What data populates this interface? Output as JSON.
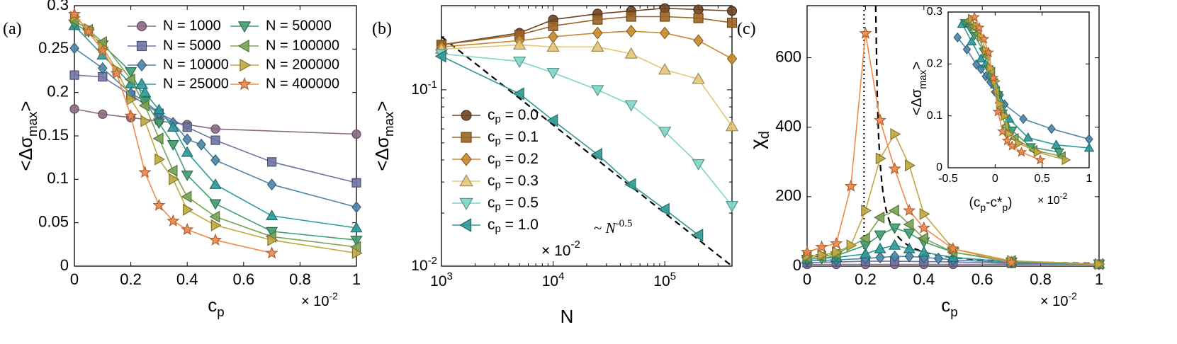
{
  "colors": {
    "N1000": "#8a6a86",
    "N5000": "#6f73a3",
    "N10000": "#4d86a8",
    "N25000": "#2c9a9a",
    "N50000": "#3f9f6f",
    "N100000": "#7aa353",
    "N200000": "#c0a83f",
    "N400000": "#f08a4a",
    "cp00": "#6b4221",
    "cp01": "#9b6423",
    "cp02": "#c88a2e",
    "cp03": "#e3c77a",
    "cp05": "#7fd6c8",
    "cp10": "#2f9a94",
    "fit": "#000000"
  },
  "chart_data": [
    {
      "panel": "(a)",
      "type": "line",
      "xlabel": "c_p",
      "x_scale_label": "× 10",
      "x_scale_exp": "-2",
      "ylabel": "<Δσ_max>",
      "xlim": [
        0,
        1
      ],
      "ylim": [
        0,
        0.3
      ],
      "xticks": [
        0,
        0.2,
        0.4,
        0.6,
        0.8,
        1
      ],
      "xticklabels": [
        "0",
        "0.2",
        "0.4",
        "0.6",
        "0.8",
        "1"
      ],
      "yticks": [
        0,
        0.05,
        0.1,
        0.15,
        0.2,
        0.25,
        0.3
      ],
      "yticklabels": [
        "0",
        "0.05",
        "0.1",
        "0.15",
        "0.2",
        "0.25",
        "0.3"
      ],
      "legend": "top-right, two columns",
      "series": [
        {
          "name": "N = 1000",
          "color_key": "N1000",
          "marker": "circle",
          "x": [
            0,
            0.1,
            0.2,
            0.3,
            0.4,
            0.5,
            1.0
          ],
          "y": [
            0.181,
            0.175,
            0.171,
            0.167,
            0.163,
            0.158,
            0.152
          ]
        },
        {
          "name": "N = 5000",
          "color_key": "N5000",
          "marker": "square",
          "x": [
            0,
            0.1,
            0.2,
            0.3,
            0.4,
            0.5,
            0.7,
            1.0
          ],
          "y": [
            0.22,
            0.218,
            0.197,
            0.176,
            0.16,
            0.145,
            0.12,
            0.096
          ]
        },
        {
          "name": "N = 10000",
          "color_key": "N10000",
          "marker": "diamond",
          "x": [
            0,
            0.1,
            0.2,
            0.25,
            0.3,
            0.35,
            0.4,
            0.45,
            0.5,
            0.7,
            1.0
          ],
          "y": [
            0.251,
            0.228,
            0.199,
            0.19,
            0.176,
            0.165,
            0.146,
            0.14,
            0.122,
            0.094,
            0.068
          ]
        },
        {
          "name": "N = 25000",
          "color_key": "N25000",
          "marker": "triangle-up",
          "x": [
            0,
            0.1,
            0.2,
            0.25,
            0.3,
            0.35,
            0.4,
            0.5,
            0.7,
            1.0
          ],
          "y": [
            0.277,
            0.243,
            0.21,
            0.2,
            0.18,
            0.16,
            0.131,
            0.094,
            0.058,
            0.044
          ]
        },
        {
          "name": "N = 50000",
          "color_key": "N50000",
          "marker": "triangle-down",
          "x": [
            0,
            0.05,
            0.1,
            0.2,
            0.25,
            0.3,
            0.35,
            0.4,
            0.5,
            0.7,
            1.0
          ],
          "y": [
            0.279,
            0.27,
            0.255,
            0.224,
            0.19,
            0.165,
            0.14,
            0.105,
            0.072,
            0.04,
            0.03
          ]
        },
        {
          "name": "N = 100000",
          "color_key": "N100000",
          "marker": "triangle-left",
          "x": [
            0,
            0.05,
            0.1,
            0.2,
            0.25,
            0.3,
            0.35,
            0.4,
            0.5,
            0.7,
            1.0
          ],
          "y": [
            0.283,
            0.272,
            0.258,
            0.215,
            0.185,
            0.147,
            0.11,
            0.08,
            0.057,
            0.034,
            0.022
          ]
        },
        {
          "name": "N = 200000",
          "color_key": "N200000",
          "marker": "triangle-right",
          "x": [
            0,
            0.05,
            0.1,
            0.15,
            0.2,
            0.25,
            0.3,
            0.35,
            0.4,
            0.5,
            0.7,
            1.0
          ],
          "y": [
            0.287,
            0.273,
            0.252,
            0.226,
            0.192,
            0.167,
            0.123,
            0.1,
            0.065,
            0.047,
            0.03,
            0.015
          ]
        },
        {
          "name": "N = 400000",
          "color_key": "N400000",
          "marker": "star",
          "x": [
            0,
            0.05,
            0.1,
            0.15,
            0.2,
            0.25,
            0.3,
            0.35,
            0.4,
            0.5,
            0.7
          ],
          "y": [
            0.29,
            0.27,
            0.248,
            0.222,
            0.173,
            0.108,
            0.07,
            0.052,
            0.042,
            0.03,
            0.015
          ]
        }
      ]
    },
    {
      "panel": "(b)",
      "type": "line",
      "scale": "log-log",
      "xlabel": "N",
      "ylabel": "<Δσ_max>",
      "xlim": [
        1000,
        400000
      ],
      "ylim": [
        0.01,
        0.3
      ],
      "xticks": [
        1000,
        10000,
        100000
      ],
      "xticklabels": [
        "10^3",
        "10^4",
        "10^5"
      ],
      "yticks": [
        0.01,
        0.1
      ],
      "yticklabels": [
        "10^-2",
        "10^-1"
      ],
      "legend": "middle-left",
      "legend_scale_label": "× 10",
      "legend_scale_exp": "-2",
      "annotation": "~ N^-0.5",
      "fit": {
        "label": "~ N^-0.5",
        "exponent": -0.5,
        "x": [
          1000,
          400000
        ],
        "y": [
          0.2,
          0.01
        ]
      },
      "series": [
        {
          "name": "c_p = 0.0",
          "color_key": "cp00",
          "marker": "circle",
          "x": [
            1000,
            5000,
            10000,
            25000,
            50000,
            100000,
            200000,
            400000
          ],
          "y": [
            0.18,
            0.21,
            0.25,
            0.27,
            0.28,
            0.29,
            0.285,
            0.28
          ]
        },
        {
          "name": "c_p = 0.1",
          "color_key": "cp01",
          "marker": "square",
          "x": [
            1000,
            5000,
            10000,
            25000,
            50000,
            100000,
            200000,
            400000
          ],
          "y": [
            0.18,
            0.205,
            0.23,
            0.25,
            0.26,
            0.26,
            0.255,
            0.24
          ]
        },
        {
          "name": "c_p = 0.2",
          "color_key": "cp02",
          "marker": "diamond",
          "x": [
            1000,
            5000,
            10000,
            25000,
            50000,
            100000,
            200000,
            400000
          ],
          "y": [
            0.175,
            0.19,
            0.2,
            0.21,
            0.215,
            0.21,
            0.19,
            0.15
          ]
        },
        {
          "name": "c_p = 0.3",
          "color_key": "cp03",
          "marker": "triangle-up",
          "x": [
            1000,
            5000,
            10000,
            25000,
            50000,
            100000,
            200000,
            400000
          ],
          "y": [
            0.17,
            0.18,
            0.175,
            0.175,
            0.16,
            0.13,
            0.115,
            0.062
          ]
        },
        {
          "name": "c_p = 0.5",
          "color_key": "cp05",
          "marker": "triangle-down",
          "x": [
            1000,
            5000,
            10000,
            25000,
            50000,
            100000,
            200000,
            400000
          ],
          "y": [
            0.16,
            0.145,
            0.125,
            0.1,
            0.082,
            0.058,
            0.038,
            0.022
          ]
        },
        {
          "name": "c_p = 1.0",
          "color_key": "cp10",
          "marker": "triangle-left",
          "x": [
            1000,
            5000,
            10000,
            25000,
            50000,
            100000,
            200000
          ],
          "y": [
            0.155,
            0.095,
            0.067,
            0.043,
            0.029,
            0.021,
            0.015
          ]
        }
      ]
    },
    {
      "panel": "(c)",
      "type": "line",
      "xlabel": "c_p",
      "x_scale_label": "× 10",
      "x_scale_exp": "-2",
      "ylabel": "χ_d",
      "xlim": [
        0,
        1
      ],
      "ylim": [
        0,
        750
      ],
      "xticks": [
        0,
        0.2,
        0.4,
        0.6,
        0.8,
        1
      ],
      "xticklabels": [
        "0",
        "0.2",
        "0.4",
        "0.6",
        "0.8",
        "1"
      ],
      "yticks": [
        0,
        200,
        400,
        600
      ],
      "yticklabels": [
        "0",
        "200",
        "400",
        "600"
      ],
      "vertical_lines": [
        {
          "x": 0.195,
          "style": "dotted"
        },
        {
          "x": 0.225,
          "style": "dashed",
          "note": "divergence fit"
        }
      ],
      "series": [
        {
          "name": "N = 1000",
          "color_key": "N1000",
          "marker": "circle",
          "x": [
            0,
            0.1,
            0.2,
            0.3,
            0.4,
            0.5,
            1.0
          ],
          "y": [
            5,
            5,
            5,
            5,
            5,
            5,
            5
          ]
        },
        {
          "name": "N = 5000",
          "color_key": "N5000",
          "marker": "square",
          "x": [
            0,
            0.1,
            0.2,
            0.3,
            0.4,
            0.5,
            0.7,
            1.0
          ],
          "y": [
            10,
            12,
            14,
            14,
            13,
            12,
            8,
            5
          ]
        },
        {
          "name": "N = 10000",
          "color_key": "N10000",
          "marker": "diamond",
          "x": [
            0,
            0.1,
            0.2,
            0.25,
            0.3,
            0.35,
            0.4,
            0.45,
            0.5,
            0.7,
            1.0
          ],
          "y": [
            15,
            18,
            22,
            25,
            28,
            28,
            25,
            22,
            18,
            10,
            6
          ]
        },
        {
          "name": "N = 25000",
          "color_key": "N25000",
          "marker": "triangle-up",
          "x": [
            0,
            0.1,
            0.2,
            0.25,
            0.3,
            0.35,
            0.4,
            0.5,
            0.7,
            1.0
          ],
          "y": [
            20,
            25,
            35,
            50,
            60,
            50,
            40,
            25,
            12,
            6
          ]
        },
        {
          "name": "N = 50000",
          "color_key": "N50000",
          "marker": "triangle-down",
          "x": [
            0,
            0.05,
            0.1,
            0.2,
            0.25,
            0.3,
            0.35,
            0.4,
            0.5,
            0.7,
            1.0
          ],
          "y": [
            20,
            22,
            30,
            60,
            90,
            110,
            95,
            70,
            40,
            12,
            6
          ]
        },
        {
          "name": "N = 100000",
          "color_key": "N100000",
          "marker": "triangle-left",
          "x": [
            0,
            0.05,
            0.1,
            0.2,
            0.25,
            0.3,
            0.35,
            0.4,
            0.5,
            0.7,
            1.0
          ],
          "y": [
            25,
            28,
            35,
            80,
            140,
            160,
            120,
            80,
            40,
            15,
            6
          ]
        },
        {
          "name": "N = 200000",
          "color_key": "N200000",
          "marker": "triangle-right",
          "x": [
            0,
            0.05,
            0.1,
            0.15,
            0.2,
            0.25,
            0.3,
            0.35,
            0.4,
            0.5,
            0.7,
            1.0
          ],
          "y": [
            30,
            32,
            40,
            60,
            160,
            310,
            380,
            290,
            150,
            50,
            15,
            6
          ]
        },
        {
          "name": "N = 400000",
          "color_key": "N400000",
          "marker": "star",
          "x": [
            0,
            0.05,
            0.1,
            0.15,
            0.2,
            0.25,
            0.3,
            0.35,
            0.4,
            0.5,
            0.7
          ],
          "y": [
            40,
            55,
            65,
            230,
            670,
            420,
            280,
            160,
            110,
            50,
            10
          ]
        }
      ]
    },
    {
      "panel": "(c) inset",
      "type": "line",
      "xlabel": "(c_p - c*_p)",
      "x_scale_label": "× 10",
      "x_scale_exp": "-2",
      "ylabel": "<Δσ_max>",
      "xlim": [
        -0.5,
        1
      ],
      "ylim": [
        0,
        0.3
      ],
      "xticks": [
        -0.5,
        0,
        0.5,
        1
      ],
      "xticklabels": [
        "-0.5",
        "0",
        "0.5",
        "1"
      ],
      "yticks": [
        0,
        0.1,
        0.2,
        0.3
      ],
      "yticklabels": [
        "0",
        "0.1",
        "0.2",
        "0.3"
      ],
      "series": [
        {
          "name": "N = 10000",
          "color_key": "N10000",
          "marker": "diamond",
          "x": [
            -0.4,
            -0.3,
            -0.2,
            -0.15,
            -0.1,
            -0.05,
            0.0,
            0.05,
            0.1,
            0.3,
            0.6,
            1.0
          ],
          "y": [
            0.251,
            0.228,
            0.199,
            0.19,
            0.176,
            0.165,
            0.146,
            0.14,
            0.122,
            0.094,
            0.075,
            0.055
          ]
        },
        {
          "name": "N = 25000",
          "color_key": "N25000",
          "marker": "triangle-up",
          "x": [
            -0.35,
            -0.25,
            -0.15,
            -0.1,
            -0.05,
            0.0,
            0.05,
            0.15,
            0.35,
            0.65,
            1.0
          ],
          "y": [
            0.277,
            0.243,
            0.21,
            0.2,
            0.18,
            0.16,
            0.131,
            0.094,
            0.058,
            0.044,
            0.038
          ]
        },
        {
          "name": "N = 50000",
          "color_key": "N50000",
          "marker": "triangle-down",
          "x": [
            -0.32,
            -0.27,
            -0.22,
            -0.12,
            -0.07,
            -0.02,
            0.03,
            0.08,
            0.18,
            0.38,
            0.68
          ],
          "y": [
            0.279,
            0.27,
            0.255,
            0.224,
            0.19,
            0.165,
            0.14,
            0.105,
            0.072,
            0.04,
            0.03
          ]
        },
        {
          "name": "N = 100000",
          "color_key": "N100000",
          "marker": "triangle-left",
          "x": [
            -0.29,
            -0.24,
            -0.19,
            -0.09,
            -0.04,
            0.01,
            0.06,
            0.11,
            0.21,
            0.41,
            0.71
          ],
          "y": [
            0.283,
            0.272,
            0.258,
            0.215,
            0.185,
            0.147,
            0.11,
            0.08,
            0.057,
            0.034,
            0.022
          ]
        },
        {
          "name": "N = 200000",
          "color_key": "N200000",
          "marker": "triangle-right",
          "x": [
            -0.25,
            -0.2,
            -0.15,
            -0.1,
            -0.05,
            0.0,
            0.05,
            0.1,
            0.15,
            0.25,
            0.45,
            0.75
          ],
          "y": [
            0.287,
            0.273,
            0.252,
            0.226,
            0.192,
            0.167,
            0.123,
            0.1,
            0.065,
            0.047,
            0.03,
            0.015
          ]
        },
        {
          "name": "N = 400000",
          "color_key": "N400000",
          "marker": "star",
          "x": [
            -0.22,
            -0.17,
            -0.12,
            -0.07,
            -0.02,
            0.03,
            0.08,
            0.13,
            0.18,
            0.28,
            0.48
          ],
          "y": [
            0.29,
            0.27,
            0.248,
            0.222,
            0.173,
            0.108,
            0.07,
            0.052,
            0.042,
            0.03,
            0.015
          ]
        }
      ]
    }
  ]
}
